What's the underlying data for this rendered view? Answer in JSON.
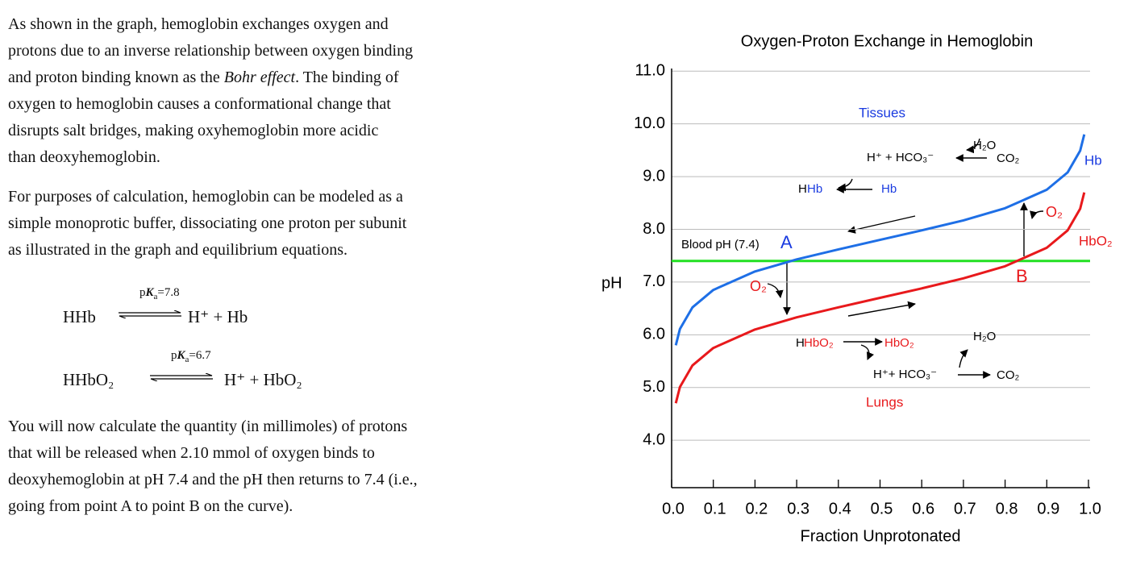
{
  "document": {
    "paragraphs": [
      {
        "lines": [
          [
            {
              "text": "As shown in the graph, hemoglobin exchanges oxygen and"
            }
          ],
          [
            {
              "text": "protons due to an inverse relationship between oxygen binding"
            }
          ],
          [
            {
              "text": "and proton binding known as the "
            },
            {
              "text": "Bohr effect",
              "italic": true
            },
            {
              "text": ". The binding of"
            }
          ],
          [
            {
              "text": "oxygen to hemoglobin causes a conformational change that"
            }
          ],
          [
            {
              "text": "disrupts salt bridges, making oxyhemoglobin more acidic"
            }
          ],
          [
            {
              "text": "than deoxyhemoglobin."
            }
          ]
        ]
      },
      {
        "lines": [
          [
            {
              "text": "For purposes of calculation, hemoglobin can be modeled as a"
            }
          ],
          [
            {
              "text": "simple monoprotic buffer, dissociating one proton per subunit"
            }
          ],
          [
            {
              "text": "as illustrated in the graph and equilibrium equations."
            }
          ]
        ]
      }
    ],
    "equations": [
      {
        "left": "HHb",
        "condition": [
          "p",
          "K",
          "a",
          "=7.8"
        ],
        "right": "H⁺ + Hb"
      },
      {
        "left": "HHbO₂",
        "condition": [
          "p",
          "K",
          "a",
          "=6.7"
        ],
        "right": "H⁺ + HbO₂"
      }
    ],
    "closing": {
      "lines": [
        [
          {
            "text": "You will now calculate the quantity (in millimoles) of protons"
          }
        ],
        [
          {
            "text": "that will be released when 2.10 mmol of oxygen binds to"
          }
        ],
        [
          {
            "text": "deoxyhemoglobin at pH 7.4 and the pH then returns to 7.4 (i.e.,"
          }
        ],
        [
          {
            "text": "going from point A to point B on the curve)."
          }
        ]
      ]
    }
  },
  "chart_data": {
    "type": "line",
    "title": "Oxygen-Proton Exchange in Hemoglobin",
    "x_label": "Fraction Unprotonated",
    "y_label": "pH",
    "x": [
      0.01,
      0.02,
      0.05,
      0.1,
      0.2,
      0.3,
      0.4,
      0.5,
      0.6,
      0.7,
      0.8,
      0.9,
      0.95,
      0.98,
      0.99
    ],
    "series": [
      {
        "name": "Hb",
        "color": "#1e6fe6",
        "values": [
          5.8,
          6.11,
          6.52,
          6.85,
          7.2,
          7.43,
          7.62,
          7.8,
          7.98,
          8.17,
          8.4,
          8.75,
          9.08,
          9.49,
          9.8
        ]
      },
      {
        "name": "HbO₂",
        "color": "#e8191c",
        "values": [
          4.7,
          5.01,
          5.42,
          5.75,
          6.1,
          6.33,
          6.52,
          6.7,
          6.88,
          7.07,
          7.3,
          7.65,
          7.98,
          8.39,
          8.7
        ]
      }
    ],
    "hlines": [
      {
        "value": 7.4,
        "color": "#22e022"
      }
    ],
    "xlim": [
      0,
      1
    ],
    "ylim": [
      3.1,
      11.05
    ],
    "xticks": [
      {
        "value": 0,
        "label": "0.0"
      },
      0.1,
      0.2,
      0.3,
      0.4,
      0.5,
      0.6,
      0.7,
      0.8,
      0.9,
      {
        "value": 1,
        "label": "1.0"
      }
    ],
    "yticks": [
      {
        "value": 4,
        "label": "4.0"
      },
      {
        "value": 5,
        "label": "5.0"
      },
      {
        "value": 6,
        "label": "6.0"
      },
      {
        "value": 7,
        "label": "7.0"
      },
      {
        "value": 8,
        "label": "8.0"
      },
      {
        "value": 9,
        "label": "9.0"
      },
      {
        "value": 10,
        "label": "10.0"
      },
      {
        "value": 11,
        "label": "11.0"
      }
    ],
    "grid": true,
    "annotations": [
      {
        "text": "Blood pH (7.4)",
        "color": "#000000"
      },
      {
        "text": "A",
        "color": "#1a3be0"
      },
      {
        "text": "B",
        "color": "#e8191c"
      },
      {
        "text": "Tissues",
        "color": "#1a3be0"
      },
      {
        "text": "Lungs",
        "color": "#e8191c"
      },
      {
        "text": "Hb",
        "color": "#1a3be0"
      },
      {
        "text": "HbO₂",
        "color": "#e8191c"
      },
      {
        "text": "H₂O",
        "color": "#000000"
      },
      {
        "text": "H⁺ + HCO₃⁻",
        "color": "#000000"
      },
      {
        "text": "CO₂",
        "color": "#000000"
      },
      {
        "text": "H",
        "color": "#000000"
      },
      {
        "text": "Hb",
        "color": "#1a3be0"
      },
      {
        "text": "Hb",
        "color": "#1a3be0"
      },
      {
        "text": "O₂",
        "color": "#e8191c"
      },
      {
        "text": "O₂",
        "color": "#e8191c"
      },
      {
        "text": "H",
        "color": "#000000"
      },
      {
        "text": "HbO₂",
        "color": "#e8191c"
      },
      {
        "text": "HbO₂",
        "color": "#e8191c"
      },
      {
        "text": "H₂O",
        "color": "#000000"
      },
      {
        "text": "H⁺+ HCO₃⁻",
        "color": "#000000"
      },
      {
        "text": "CO₂",
        "color": "#000000"
      }
    ]
  }
}
